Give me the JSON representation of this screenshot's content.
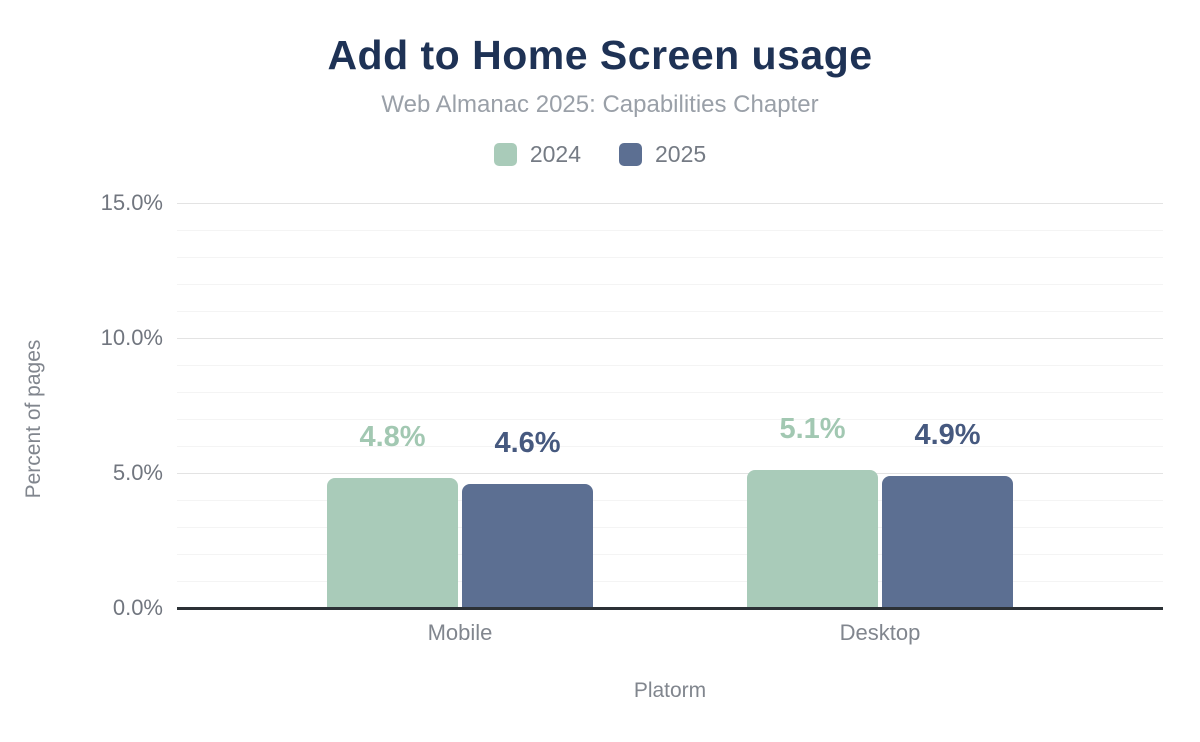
{
  "chart_data": {
    "type": "bar",
    "title": "Add to Home Screen usage",
    "subtitle": "Web Almanac 2025: Capabilities Chapter",
    "categories": [
      "Mobile",
      "Desktop"
    ],
    "series": [
      {
        "name": "2024",
        "values": [
          4.8,
          5.1
        ],
        "labels": [
          "4.8%",
          "5.1%"
        ],
        "color": "#a9cbb9",
        "label_color": "#a2c8b2"
      },
      {
        "name": "2025",
        "values": [
          4.6,
          4.9
        ],
        "labels": [
          "4.6%",
          "4.9%"
        ],
        "color": "#5c6f92",
        "label_color": "#46597f"
      }
    ],
    "xlabel": "Platorm",
    "ylabel": "Percent of pages",
    "ylim": [
      0,
      15
    ],
    "yticks": [
      0,
      5,
      10,
      15
    ],
    "ytick_labels": [
      "0.0%",
      "5.0%",
      "10.0%",
      "15.0%"
    ],
    "minor_grid_step": 1,
    "grid": "on",
    "legend_position": "top-center",
    "colors": {
      "title": "#1e3255",
      "subtitle": "#9aa0a8",
      "axis_line": "#2c3136",
      "tick_label": "#71767f",
      "minor_grid": "#f4f4f4",
      "major_grid": "#e3e3e3"
    }
  }
}
